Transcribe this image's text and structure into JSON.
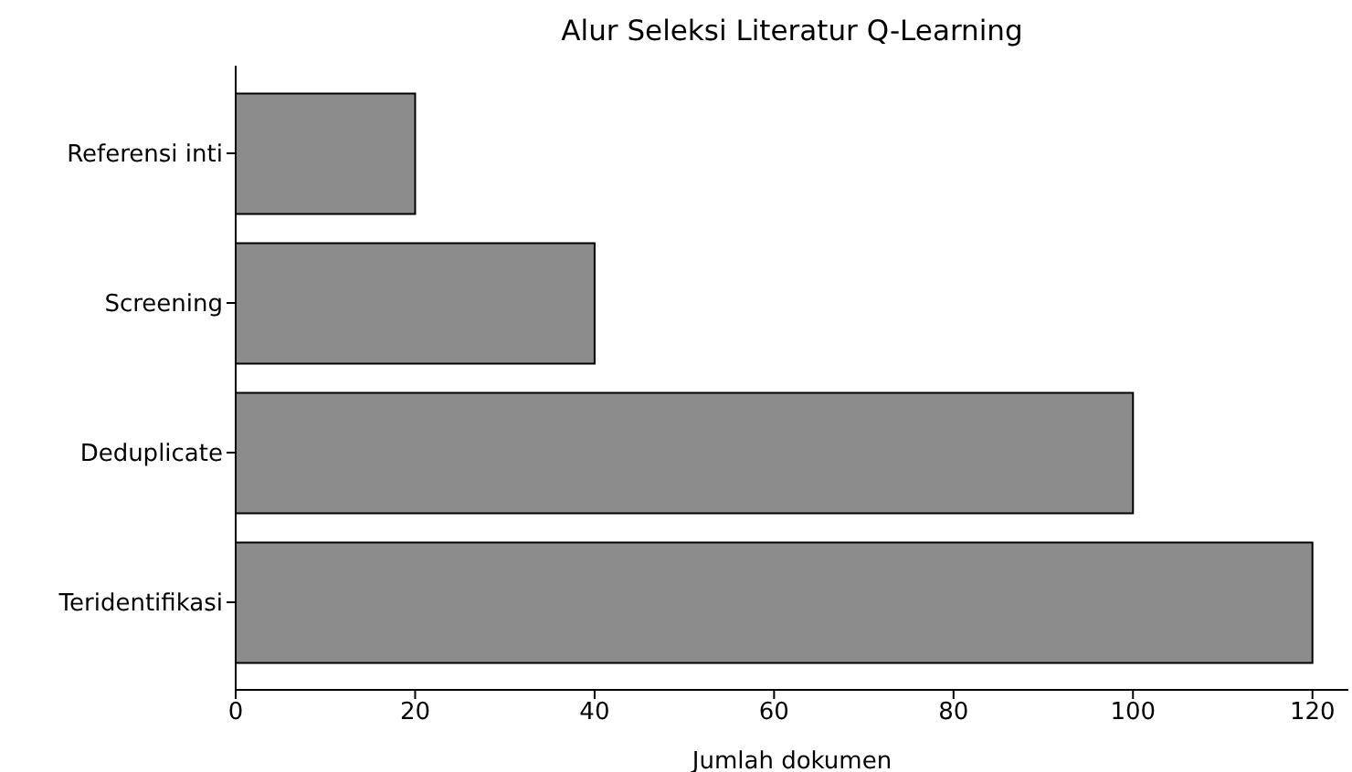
{
  "chart_data": {
    "type": "bar",
    "orientation": "horizontal",
    "title": "Alur Seleksi Literatur Q-Learning",
    "xlabel": "Jumlah dokumen",
    "categories": [
      "Referensi inti",
      "Screening",
      "Deduplicate",
      "Teridentifikasi"
    ],
    "values": [
      20,
      40,
      100,
      120
    ],
    "color": "#8c8c8c",
    "xlim": [
      0,
      124
    ],
    "xticks": [
      0,
      20,
      40,
      60,
      80,
      100,
      120
    ],
    "grid": false,
    "legend": false
  }
}
